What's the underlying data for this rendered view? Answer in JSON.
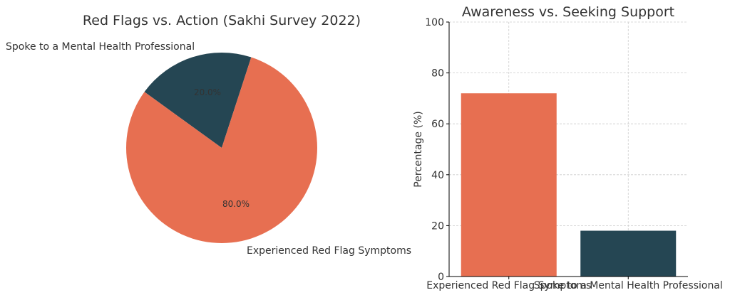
{
  "chart_data": [
    {
      "type": "pie",
      "title": "Red Flags vs. Action (Sakhi Survey 2022)",
      "categories": [
        "Spoke to a Mental Health Professional",
        "Experienced Red Flag Symptoms"
      ],
      "values": [
        20.0,
        80.0
      ],
      "value_labels": [
        "20.0%",
        "80.0%"
      ],
      "colors": [
        "#254653",
        "#e76f51"
      ]
    },
    {
      "type": "bar",
      "title": "Awareness vs. Seeking Support",
      "categories": [
        "Experienced Red Flag Symptoms",
        "Spoke to a Mental Health Professional"
      ],
      "values": [
        72,
        18
      ],
      "colors": [
        "#e76f51",
        "#254653"
      ],
      "xlabel": "",
      "ylabel": "Percentage (%)",
      "ylim": [
        0,
        100
      ],
      "yticks": [
        "0",
        "20",
        "40",
        "60",
        "80",
        "100"
      ],
      "grid": true
    }
  ]
}
